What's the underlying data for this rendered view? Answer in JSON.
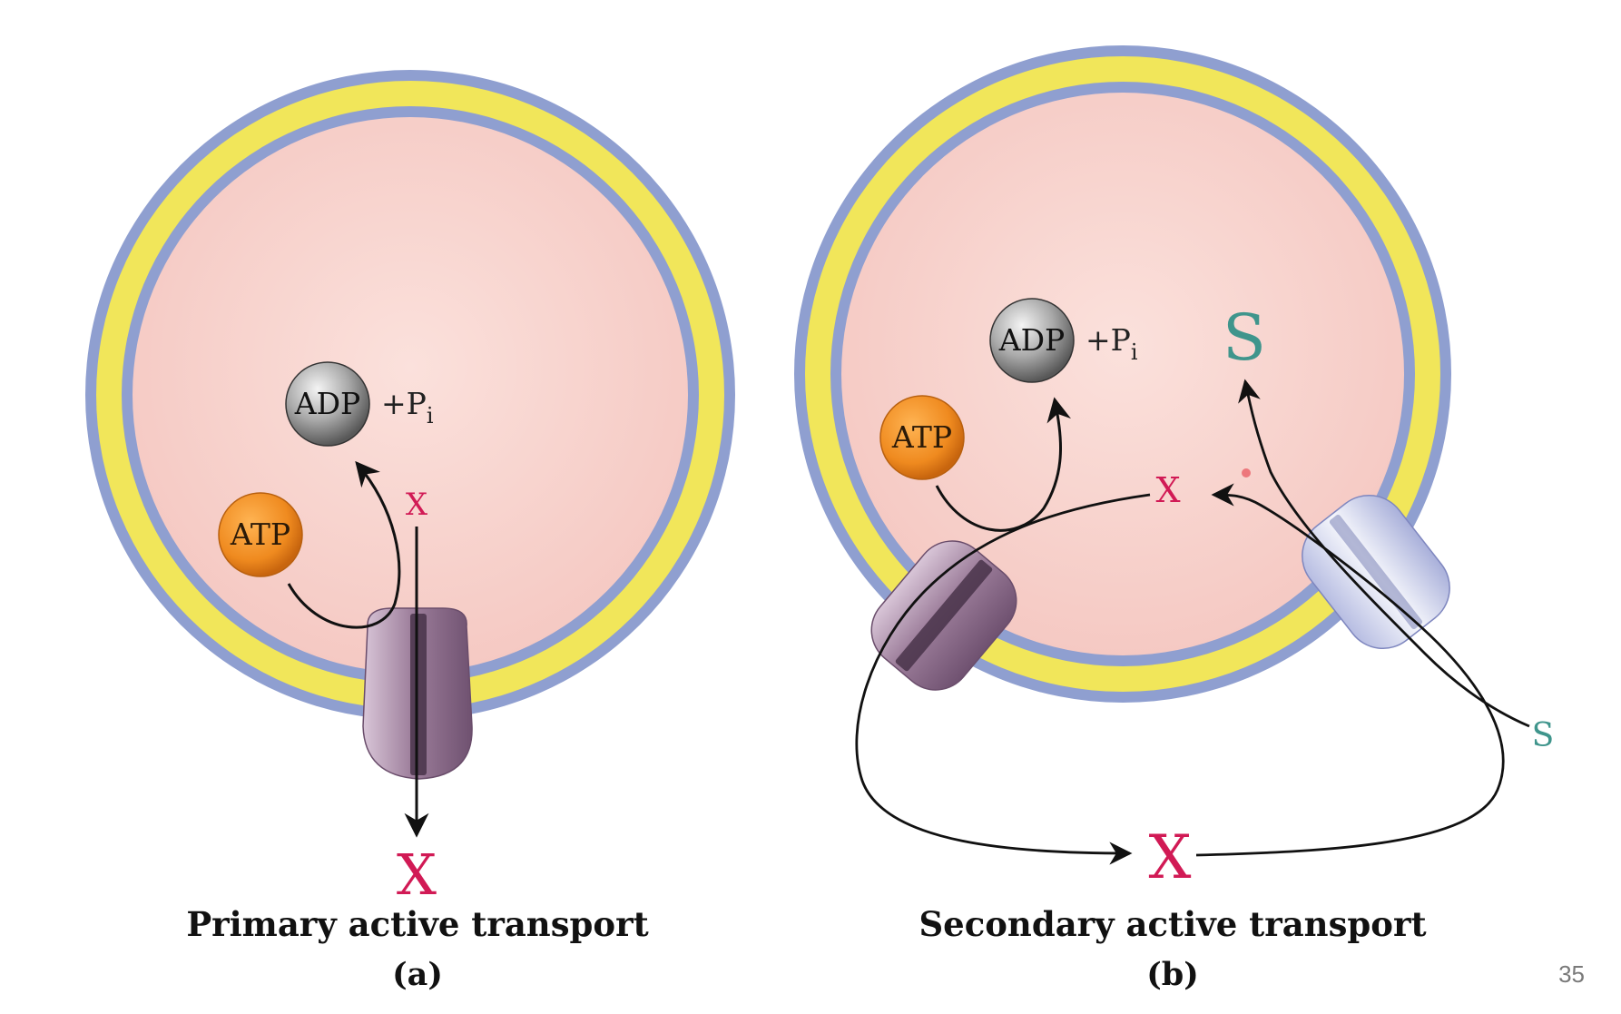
{
  "panel_a": {
    "adp": "ADP",
    "pi_prefix": "+P",
    "pi_sub": "i",
    "atp": "ATP",
    "x_small": "X",
    "x_large": "X",
    "title": "Primary active transport",
    "letter": "(a)"
  },
  "panel_b": {
    "adp": "ADP",
    "pi_prefix": "+P",
    "pi_sub": "i",
    "atp": "ATP",
    "s_large": "S",
    "x_small": "X",
    "x_large": "X",
    "s_small": "S",
    "title": "Secondary active transport",
    "letter": "(b)"
  },
  "slide_number": "35",
  "colors": {
    "cytoplasm": "#f8d4cf",
    "membrane_outer": "#8f9fd0",
    "membrane_core": "#f1e65a",
    "atp": "#ef8c22",
    "adp": "#9a9a9a",
    "x_label": "#d11a55",
    "s_label": "#3f958c",
    "pump": "#9c7f9b",
    "symporter": "#c8cde8"
  }
}
